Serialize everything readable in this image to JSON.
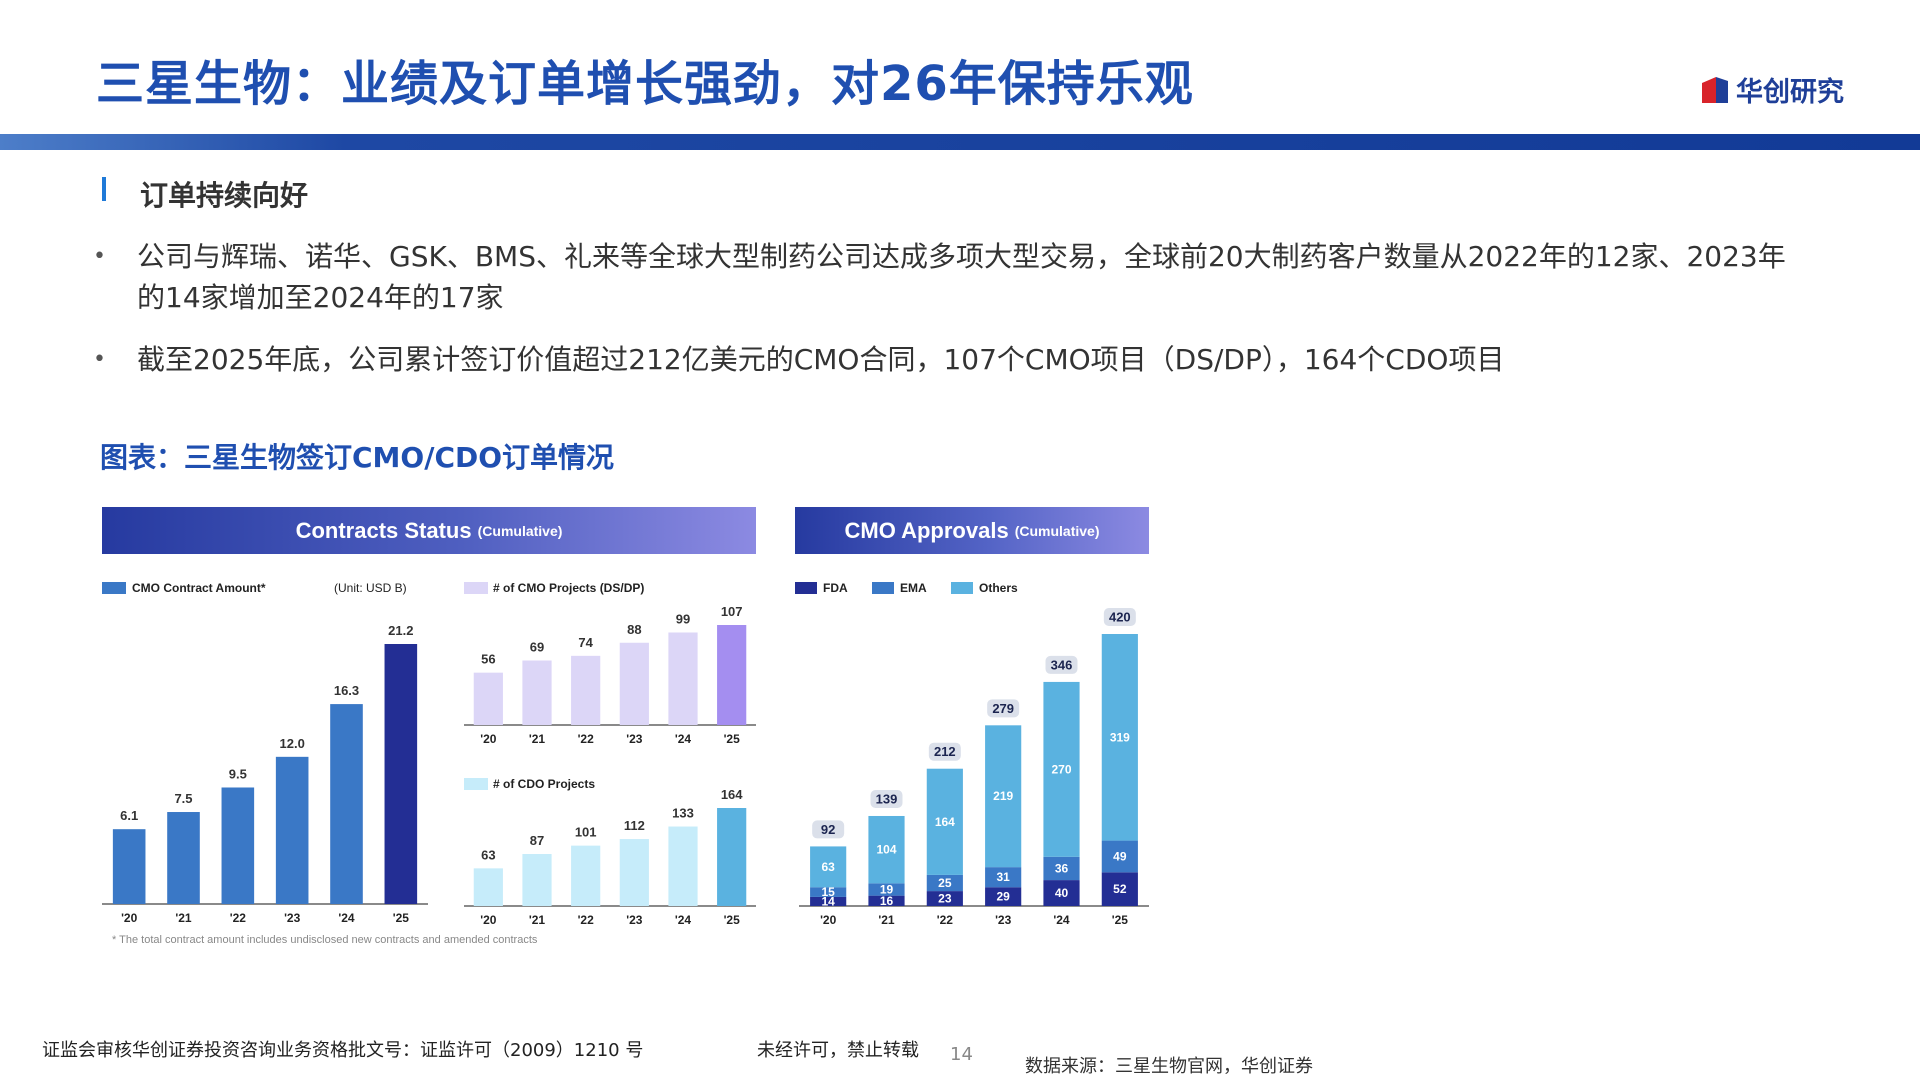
{
  "page": {
    "title": "三星生物：业绩及订单增长强劲，对26年保持乐观",
    "logo_text": "华创研究",
    "section_title": "订单持续向好",
    "bullets": [
      "公司与辉瑞、诺华、GSK、BMS、礼来等全球大型制药公司达成多项大型交易，全球前20大制药客户数量从2022年的12家、2023年的14家增加至2024年的17家",
      "截至2025年底，公司累计签订价值超过212亿美元的CMO合同，107个CMO项目（DS/DP），164个CDO项目"
    ],
    "bullet_symbol": "•",
    "chart_caption": "图表：三星生物签订CMO/CDO订单情况",
    "footer_left": "证监会审核华创证券投资咨询业务资格批文号：证监许可（2009）1210 号",
    "footer_mid": "未经许可，禁止转载",
    "page_number": "14",
    "source": "数据来源：三星生物官网，华创证券"
  },
  "panels": {
    "left_title": "Contracts Status",
    "left_sub": "(Cumulative)",
    "right_title": "CMO Approvals",
    "right_sub": "(Cumulative)",
    "footnote": "* The total contract amount includes undisclosed new contracts and amended contracts"
  },
  "colors": {
    "brand_blue": "#1f4fb0",
    "contract_bar": "#3a78c6",
    "contract_last": "#232e94",
    "cmo_proj_bar": "#dcd6f7",
    "cmo_proj_last": "#a48ef0",
    "cdo_bar": "#c6ecfa",
    "cdo_last": "#5ab2e0",
    "fda": "#232e94",
    "ema": "#3a78c6",
    "others": "#5ab2e0",
    "total_pill": "#dbe0ea"
  },
  "chart_data": [
    {
      "type": "bar",
      "name_label": "CMO Contract Amount*",
      "unit_label": "(Unit: USD B)",
      "categories": [
        "'20",
        "'21",
        "'22",
        "'23",
        "'24",
        "'25"
      ],
      "values": [
        6.1,
        7.5,
        9.5,
        12.0,
        16.3,
        21.2
      ],
      "value_labels": [
        "6.1",
        "7.5",
        "9.5",
        "12.0",
        "16.3",
        "21.2"
      ]
    },
    {
      "type": "bar",
      "name_label": "# of CMO Projects (DS/DP)",
      "categories": [
        "'20",
        "'21",
        "'22",
        "'23",
        "'24",
        "'25"
      ],
      "values": [
        56,
        69,
        74,
        88,
        99,
        107
      ]
    },
    {
      "type": "bar",
      "name_label": "# of CDO Projects",
      "categories": [
        "'20",
        "'21",
        "'22",
        "'23",
        "'24",
        "'25"
      ],
      "values": [
        63,
        87,
        101,
        112,
        133,
        164
      ]
    },
    {
      "type": "bar",
      "stacked": true,
      "categories": [
        "'20",
        "'21",
        "'22",
        "'23",
        "'24",
        "'25"
      ],
      "series": [
        {
          "name": "FDA",
          "values": [
            14,
            16,
            23,
            29,
            40,
            52
          ]
        },
        {
          "name": "EMA",
          "values": [
            15,
            19,
            25,
            31,
            36,
            49
          ]
        },
        {
          "name": "Others",
          "values": [
            63,
            104,
            164,
            219,
            270,
            319
          ]
        }
      ],
      "totals": [
        92,
        139,
        212,
        279,
        346,
        420
      ]
    }
  ]
}
